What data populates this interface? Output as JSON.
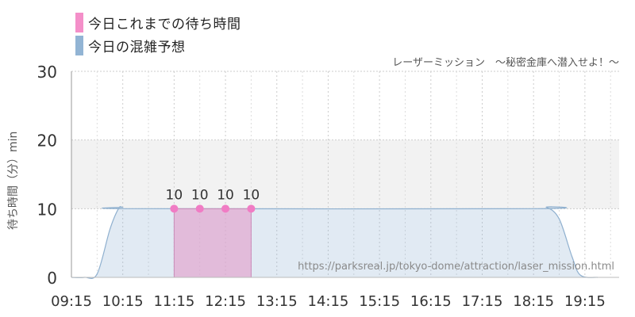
{
  "legend": {
    "items": [
      {
        "label": "今日これまでの待ち時間",
        "color": "#f48fc9"
      },
      {
        "label": "今日の混雑予想",
        "color": "#92b4d4"
      }
    ]
  },
  "attraction_title": "レーザーミッション　～秘密金庫へ潜入せよ！～",
  "source_url": "https://parksreal.jp/tokyo-dome/attraction/laser_mission.html",
  "chart_data": {
    "type": "area",
    "title": "",
    "xlabel": "",
    "ylabel": "待ち時間（分）min",
    "ylim": [
      0,
      30
    ],
    "yticks": [
      0,
      10,
      20,
      30
    ],
    "xticks": [
      "09:15",
      "10:15",
      "11:15",
      "12:15",
      "13:15",
      "14:15",
      "15:15",
      "16:15",
      "17:15",
      "18:15",
      "19:15"
    ],
    "shaded_band": [
      10,
      20
    ],
    "grid": true,
    "legend_position": "top-left",
    "series": [
      {
        "name": "今日の混雑予想",
        "color": "#92b4d4",
        "points": [
          [
            "09:15",
            0
          ],
          [
            "09:30",
            0
          ],
          [
            "09:45",
            0.5
          ],
          [
            "10:00",
            7
          ],
          [
            "10:10",
            10
          ],
          [
            "10:15",
            10.2
          ],
          [
            "10:30",
            10
          ],
          [
            "18:15",
            10
          ],
          [
            "18:30",
            10.2
          ],
          [
            "18:45",
            8.5
          ],
          [
            "19:00",
            3
          ],
          [
            "19:10",
            0.3
          ],
          [
            "19:30",
            0
          ]
        ]
      },
      {
        "name": "今日これまでの待ち時間",
        "color": "#f48fc9",
        "points": [
          [
            "11:15",
            10
          ],
          [
            "11:45",
            10
          ],
          [
            "12:15",
            10
          ],
          [
            "12:45",
            10
          ]
        ],
        "labels": [
          "10",
          "10",
          "10",
          "10"
        ]
      }
    ]
  }
}
